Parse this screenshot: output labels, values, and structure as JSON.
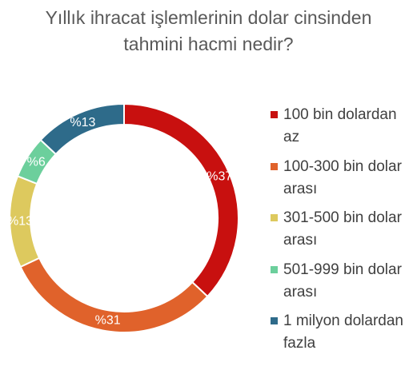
{
  "chart_data": {
    "type": "donut",
    "title": "Yıllık ihracat işlemlerinin dolar cinsinden tahmini hacmi nedir?",
    "categories": [
      "100 bin dolardan az",
      "100-300 bin dolar arası",
      "301-500 bin dolar arası",
      "501-999 bin dolar arası",
      "1 milyon dolardan fazla"
    ],
    "values": [
      37,
      31,
      13,
      6,
      13
    ],
    "value_labels": [
      "%37",
      "%31",
      "%13",
      "%6",
      "%13"
    ],
    "colors": [
      "#c8100f",
      "#e0622b",
      "#ddc95e",
      "#6ccf9c",
      "#2e6b8a"
    ],
    "legend": "right"
  }
}
